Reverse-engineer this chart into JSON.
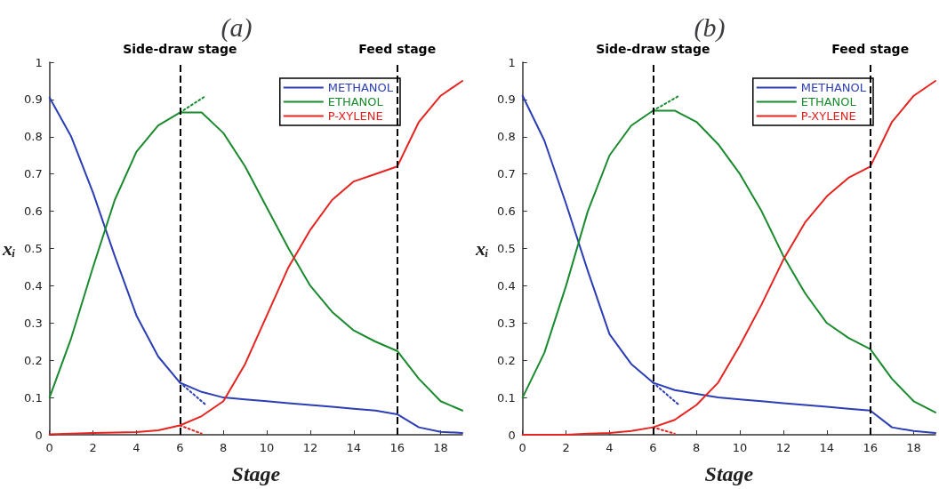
{
  "chart_data": [
    {
      "type": "line",
      "title": "(a)",
      "xlabel": "Stage",
      "ylabel": "xᵢ",
      "x": [
        0,
        1,
        2,
        3,
        4,
        5,
        6,
        7,
        8,
        9,
        10,
        11,
        12,
        13,
        14,
        15,
        16,
        17,
        18,
        19
      ],
      "xlim": [
        0,
        19
      ],
      "ylim": [
        0,
        1
      ],
      "xticks": [
        0,
        2,
        4,
        6,
        8,
        10,
        12,
        14,
        16,
        18
      ],
      "yticks": [
        0,
        0.1,
        0.2,
        0.3,
        0.4,
        0.5,
        0.6,
        0.7,
        0.8,
        0.9,
        1
      ],
      "legend": "top right",
      "marker": "none",
      "line_style": "solid",
      "series": [
        {
          "name": "METHANOL",
          "color": "#2b3eb5",
          "values": [
            0.905,
            0.8,
            0.65,
            0.48,
            0.32,
            0.21,
            0.14,
            0.115,
            0.1,
            0.095,
            0.09,
            0.085,
            0.08,
            0.075,
            0.07,
            0.065,
            0.055,
            0.02,
            0.008,
            0.005
          ]
        },
        {
          "name": "ETHANOL",
          "color": "#1a8a2e",
          "values": [
            0.1,
            0.26,
            0.45,
            0.63,
            0.76,
            0.83,
            0.865,
            0.865,
            0.81,
            0.72,
            0.61,
            0.5,
            0.4,
            0.33,
            0.28,
            0.25,
            0.225,
            0.15,
            0.09,
            0.065
          ]
        },
        {
          "name": "P-XYLENE",
          "color": "#e52420",
          "values": [
            0.001,
            0.003,
            0.005,
            0.006,
            0.007,
            0.012,
            0.025,
            0.05,
            0.09,
            0.19,
            0.32,
            0.45,
            0.55,
            0.63,
            0.68,
            0.7,
            0.72,
            0.84,
            0.91,
            0.95
          ]
        },
        {
          "color": "#2b3eb5",
          "x": [
            6,
            7.2
          ],
          "values": [
            0.14,
            0.08
          ],
          "line_style": "dotted"
        },
        {
          "color": "#1a8a2e",
          "x": [
            6,
            7.2
          ],
          "values": [
            0.865,
            0.91
          ],
          "line_style": "dotted"
        },
        {
          "color": "#e52420",
          "x": [
            6,
            7
          ],
          "values": [
            0.025,
            0.003
          ],
          "line_style": "dotted"
        }
      ],
      "ref_lines": [
        {
          "axis": "x",
          "value": 6,
          "label": "Side-draw stage",
          "color": "#000000",
          "line_style": "dashed"
        },
        {
          "axis": "x",
          "value": 16,
          "label": "Feed stage",
          "color": "#000000",
          "line_style": "dashed"
        }
      ]
    },
    {
      "type": "line",
      "title": "(b)",
      "xlabel": "Stage",
      "ylabel": "xᵢ",
      "x": [
        0,
        1,
        2,
        3,
        4,
        5,
        6,
        7,
        8,
        9,
        10,
        11,
        12,
        13,
        14,
        15,
        16,
        17,
        18,
        19
      ],
      "xlim": [
        0,
        19
      ],
      "ylim": [
        0,
        1
      ],
      "xticks": [
        0,
        2,
        4,
        6,
        8,
        10,
        12,
        14,
        16,
        18
      ],
      "yticks": [
        0,
        0.1,
        0.2,
        0.3,
        0.4,
        0.5,
        0.6,
        0.7,
        0.8,
        0.9,
        1
      ],
      "legend": "top right",
      "marker": "none",
      "line_style": "solid",
      "series": [
        {
          "name": "METHANOL",
          "color": "#2b3eb5",
          "values": [
            0.91,
            0.79,
            0.62,
            0.44,
            0.27,
            0.19,
            0.14,
            0.12,
            0.11,
            0.1,
            0.095,
            0.09,
            0.085,
            0.08,
            0.075,
            0.07,
            0.065,
            0.02,
            0.01,
            0.005
          ]
        },
        {
          "name": "ETHANOL",
          "color": "#1a8a2e",
          "values": [
            0.1,
            0.22,
            0.4,
            0.6,
            0.75,
            0.83,
            0.87,
            0.87,
            0.84,
            0.78,
            0.7,
            0.6,
            0.48,
            0.38,
            0.3,
            0.26,
            0.23,
            0.15,
            0.09,
            0.06
          ]
        },
        {
          "name": "P-XYLENE",
          "color": "#e52420",
          "values": [
            0,
            0,
            0,
            0.003,
            0.005,
            0.01,
            0.02,
            0.04,
            0.08,
            0.14,
            0.24,
            0.35,
            0.47,
            0.57,
            0.64,
            0.69,
            0.72,
            0.84,
            0.91,
            0.95
          ]
        },
        {
          "color": "#2b3eb5",
          "x": [
            6,
            7.2
          ],
          "values": [
            0.14,
            0.08
          ],
          "line_style": "dotted"
        },
        {
          "color": "#1a8a2e",
          "x": [
            6,
            7.2
          ],
          "values": [
            0.87,
            0.91
          ],
          "line_style": "dotted"
        },
        {
          "color": "#e52420",
          "x": [
            6,
            7
          ],
          "values": [
            0.02,
            0.003
          ],
          "line_style": "dotted"
        }
      ],
      "ref_lines": [
        {
          "axis": "x",
          "value": 6,
          "label": "Side-draw stage",
          "color": "#000000",
          "line_style": "dashed"
        },
        {
          "axis": "x",
          "value": 16,
          "label": "Feed stage",
          "color": "#000000",
          "line_style": "dashed"
        }
      ]
    }
  ]
}
